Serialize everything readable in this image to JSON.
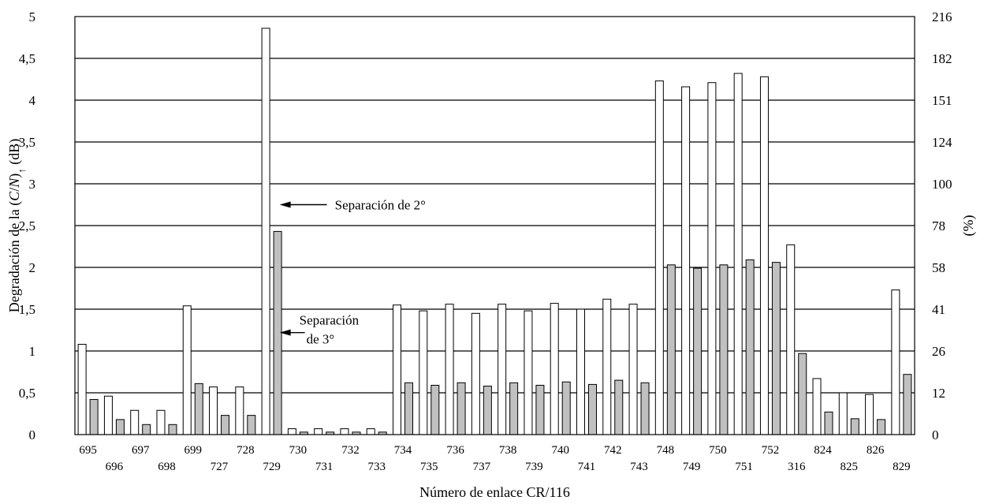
{
  "chart_data": {
    "type": "bar",
    "title": "",
    "xlabel": "Número de enlace CR/116",
    "ylabel": "Degradación de la (C/N)↑ (dB)",
    "ylabel_parts": {
      "prefix": "Degradación de la (",
      "c": "C",
      "slash": "/",
      "n": "N",
      "suffix": ")",
      "sub": "↑",
      "unit": " (dB)"
    },
    "y2label": "(%)",
    "ylim": [
      0,
      5
    ],
    "y_ticks": [
      "0",
      "0,5",
      "1",
      "1,5",
      "2",
      "2,5",
      "3",
      "3,5",
      "4",
      "4,5",
      "5"
    ],
    "y2_ticks": [
      "0",
      "12",
      "26",
      "41",
      "58",
      "78",
      "100",
      "124",
      "151",
      "182",
      "216"
    ],
    "grid": true,
    "categories": [
      "695",
      "696",
      "697",
      "698",
      "699",
      "727",
      "728",
      "729",
      "730",
      "731",
      "732",
      "733",
      "734",
      "735",
      "736",
      "737",
      "738",
      "739",
      "740",
      "741",
      "742",
      "743",
      "748",
      "749",
      "750",
      "751",
      "752",
      "316",
      "824",
      "825",
      "826",
      "829"
    ],
    "series": [
      {
        "values": [
          1.08,
          0.46,
          0.29,
          0.29,
          1.54,
          0.57,
          0.57,
          4.86,
          0.07,
          0.07,
          0.07,
          0.07,
          1.55,
          1.48,
          1.56,
          1.45,
          1.56,
          1.48,
          1.57,
          1.5,
          1.62,
          1.56,
          4.23,
          4.16,
          4.21,
          4.32,
          4.28,
          2.27,
          0.67,
          0.5,
          0.48,
          1.73
        ],
        "color": "#ffffff"
      },
      {
        "values": [
          0.42,
          0.18,
          0.12,
          0.12,
          0.61,
          0.23,
          0.23,
          2.43,
          0.03,
          0.03,
          0.03,
          0.03,
          0.62,
          0.59,
          0.62,
          0.58,
          0.62,
          0.59,
          0.63,
          0.6,
          0.65,
          0.62,
          2.03,
          1.99,
          2.03,
          2.09,
          2.06,
          0.97,
          0.27,
          0.19,
          0.18,
          0.72
        ],
        "color": "#c0c0c0"
      }
    ],
    "annotations": [
      {
        "text": "Separación de 2°",
        "target_category": "729",
        "target_y": 2.75
      },
      {
        "text_lines": [
          "Separación",
          "de 3°"
        ],
        "target_category": "729",
        "target_y": 1.22
      }
    ]
  }
}
